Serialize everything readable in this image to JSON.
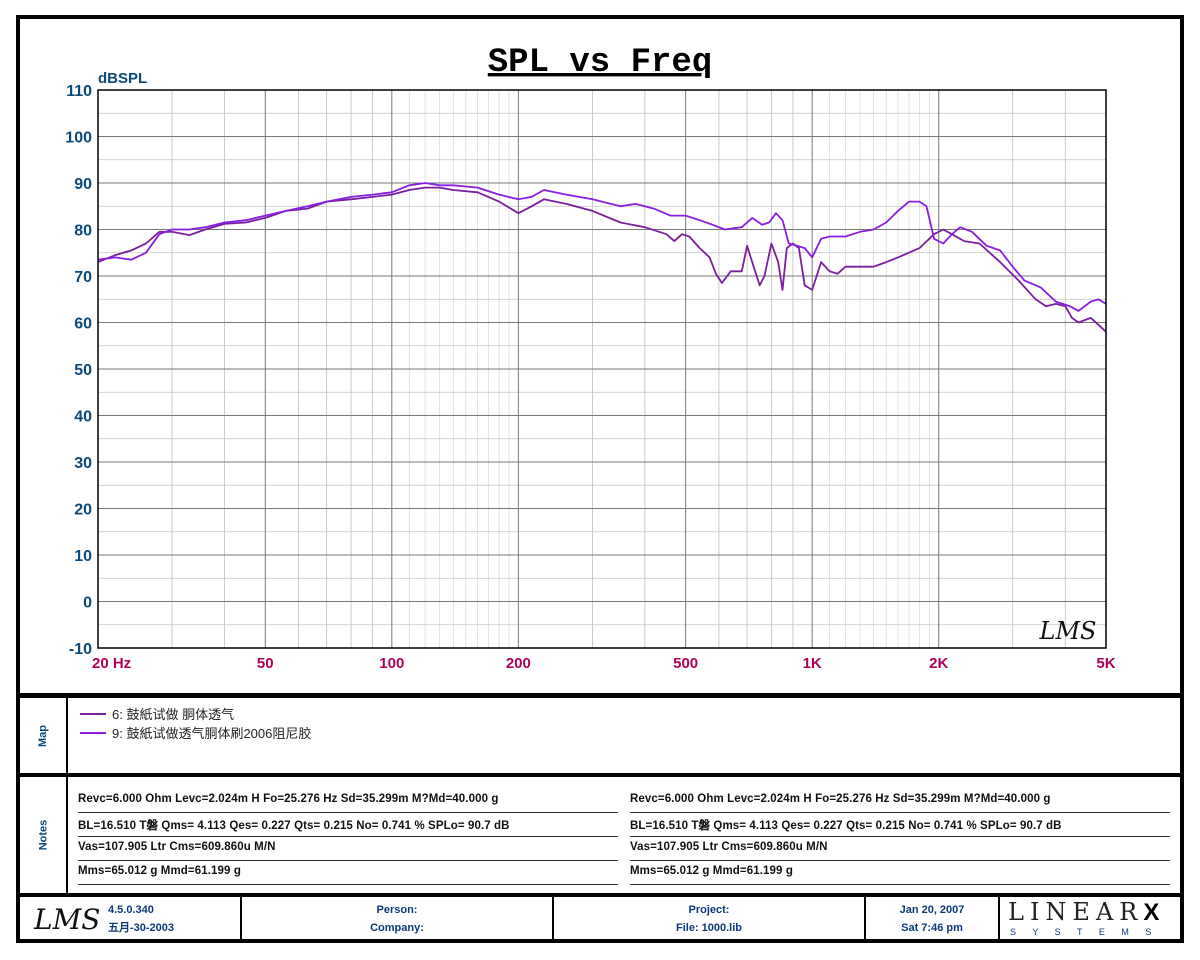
{
  "chart_data": {
    "type": "line",
    "title": "SPL vs Freq",
    "ylabel": "dBSPL",
    "xscale": "log",
    "xlim": [
      20,
      5000
    ],
    "ylim": [
      -10,
      110
    ],
    "grid": true,
    "yticks": [
      110,
      100,
      90,
      80,
      70,
      60,
      50,
      40,
      30,
      20,
      10,
      0,
      -10
    ],
    "xticks": [
      {
        "v": 20,
        "label": "20 Hz"
      },
      {
        "v": 50,
        "label": "50"
      },
      {
        "v": 100,
        "label": "100"
      },
      {
        "v": 200,
        "label": "200"
      },
      {
        "v": 500,
        "label": "500"
      },
      {
        "v": 1000,
        "label": "1K"
      },
      {
        "v": 2000,
        "label": "2K"
      },
      {
        "v": 5000,
        "label": "5K"
      }
    ],
    "watermark": "LMS",
    "series": [
      {
        "name": "6: 鼓紙试做 胴体透气",
        "color": "#7a1fa0",
        "points": [
          [
            20,
            73
          ],
          [
            22,
            74.5
          ],
          [
            24,
            75.5
          ],
          [
            26,
            77
          ],
          [
            28,
            79.5
          ],
          [
            30,
            79.5
          ],
          [
            33,
            78.8
          ],
          [
            36,
            80
          ],
          [
            40,
            81.2
          ],
          [
            45,
            81.5
          ],
          [
            50,
            82.5
          ],
          [
            56,
            84
          ],
          [
            63,
            84.5
          ],
          [
            70,
            86
          ],
          [
            80,
            86.5
          ],
          [
            90,
            87
          ],
          [
            100,
            87.5
          ],
          [
            110,
            88.5
          ],
          [
            120,
            89
          ],
          [
            130,
            89
          ],
          [
            140,
            88.5
          ],
          [
            160,
            88
          ],
          [
            180,
            86
          ],
          [
            200,
            83.5
          ],
          [
            215,
            85
          ],
          [
            230,
            86.5
          ],
          [
            260,
            85.5
          ],
          [
            300,
            84
          ],
          [
            350,
            81.5
          ],
          [
            400,
            80.5
          ],
          [
            450,
            79
          ],
          [
            470,
            77.5
          ],
          [
            490,
            79
          ],
          [
            510,
            78.5
          ],
          [
            540,
            76
          ],
          [
            570,
            74
          ],
          [
            590,
            70.5
          ],
          [
            610,
            68.5
          ],
          [
            640,
            71
          ],
          [
            680,
            71
          ],
          [
            700,
            76.5
          ],
          [
            720,
            73
          ],
          [
            750,
            68
          ],
          [
            770,
            70
          ],
          [
            800,
            77
          ],
          [
            830,
            73
          ],
          [
            850,
            67
          ],
          [
            870,
            76
          ],
          [
            900,
            77
          ],
          [
            930,
            76
          ],
          [
            960,
            68
          ],
          [
            1000,
            67
          ],
          [
            1050,
            73
          ],
          [
            1100,
            71
          ],
          [
            1150,
            70.5
          ],
          [
            1200,
            72
          ],
          [
            1300,
            72
          ],
          [
            1400,
            72
          ],
          [
            1500,
            73
          ],
          [
            1600,
            74
          ],
          [
            1800,
            76
          ],
          [
            1950,
            79
          ],
          [
            2050,
            80
          ],
          [
            2150,
            79
          ],
          [
            2300,
            77.5
          ],
          [
            2500,
            77
          ],
          [
            2800,
            73
          ],
          [
            3100,
            69
          ],
          [
            3400,
            65
          ],
          [
            3600,
            63.5
          ],
          [
            3800,
            64
          ],
          [
            4000,
            63.5
          ],
          [
            4150,
            61
          ],
          [
            4300,
            60
          ],
          [
            4600,
            61
          ],
          [
            4800,
            59.5
          ],
          [
            5000,
            58
          ]
        ]
      },
      {
        "name": "9: 鼓紙试做透气胴体刷2006阻尼胶",
        "color": "#8a1ee0",
        "points": [
          [
            20,
            73.5
          ],
          [
            22,
            74
          ],
          [
            24,
            73.5
          ],
          [
            26,
            75
          ],
          [
            28,
            79
          ],
          [
            30,
            80
          ],
          [
            33,
            80
          ],
          [
            36,
            80.5
          ],
          [
            40,
            81.5
          ],
          [
            45,
            82
          ],
          [
            50,
            83
          ],
          [
            56,
            84
          ],
          [
            63,
            85
          ],
          [
            70,
            86
          ],
          [
            80,
            87
          ],
          [
            90,
            87.5
          ],
          [
            100,
            88
          ],
          [
            110,
            89.5
          ],
          [
            120,
            90
          ],
          [
            130,
            89.5
          ],
          [
            140,
            89.5
          ],
          [
            160,
            89
          ],
          [
            180,
            87.5
          ],
          [
            200,
            86.5
          ],
          [
            215,
            87
          ],
          [
            230,
            88.5
          ],
          [
            260,
            87.5
          ],
          [
            300,
            86.5
          ],
          [
            350,
            85
          ],
          [
            380,
            85.5
          ],
          [
            420,
            84.5
          ],
          [
            460,
            83
          ],
          [
            500,
            83
          ],
          [
            540,
            82
          ],
          [
            580,
            81
          ],
          [
            620,
            80
          ],
          [
            680,
            80.5
          ],
          [
            720,
            82.5
          ],
          [
            760,
            81
          ],
          [
            790,
            81.5
          ],
          [
            820,
            83.5
          ],
          [
            850,
            82
          ],
          [
            880,
            77
          ],
          [
            920,
            76.5
          ],
          [
            960,
            76
          ],
          [
            1000,
            74
          ],
          [
            1050,
            78
          ],
          [
            1100,
            78.5
          ],
          [
            1200,
            78.5
          ],
          [
            1300,
            79.5
          ],
          [
            1400,
            80
          ],
          [
            1500,
            81.5
          ],
          [
            1600,
            84
          ],
          [
            1700,
            86
          ],
          [
            1800,
            86
          ],
          [
            1870,
            85
          ],
          [
            1950,
            78
          ],
          [
            2050,
            77
          ],
          [
            2150,
            79
          ],
          [
            2250,
            80.5
          ],
          [
            2400,
            79.5
          ],
          [
            2600,
            76.5
          ],
          [
            2800,
            75.5
          ],
          [
            3000,
            72
          ],
          [
            3200,
            69
          ],
          [
            3500,
            67.5
          ],
          [
            3800,
            64.5
          ],
          [
            4100,
            63.5
          ],
          [
            4300,
            62.5
          ],
          [
            4600,
            64.5
          ],
          [
            4800,
            65
          ],
          [
            5000,
            64
          ]
        ]
      }
    ]
  },
  "map": {
    "label": "Map",
    "items": [
      {
        "text": "6: 鼓紙试做 胴体透气",
        "color": "#7a1fa0"
      },
      {
        "text": "9: 鼓紙试做透气胴体刷2006阻尼胶",
        "color": "#8a1ee0"
      }
    ]
  },
  "notes": {
    "label": "Notes",
    "left": [
      "Revc=6.000 Ohm  Levc=2.024m H  Fo=25.276 Hz  Sd=35.299m M?Md=40.000 g",
      "BL=16.510 T磐  Qms= 4.113  Qes= 0.227  Qts= 0.215  No= 0.741 %  SPLo= 90.7 dB",
      "Vas=107.905 Ltr  Cms=609.860u M/N",
      "Mms=65.012 g  Mmd=61.199 g"
    ],
    "right": [
      "Revc=6.000 Ohm  Levc=2.024m H  Fo=25.276 Hz  Sd=35.299m M?Md=40.000 g",
      "BL=16.510 T磐  Qms= 4.113  Qes= 0.227  Qts= 0.215  No= 0.741 %  SPLo= 90.7 dB",
      "Vas=107.905 Ltr  Cms=609.860u M/N",
      "Mms=65.012 g  Mmd=61.199 g"
    ]
  },
  "footer": {
    "logo": "LMS",
    "version": "4.5.0.340",
    "build_date": "五月-30-2003",
    "person": "Person:",
    "company": "Company:",
    "project": "Project:",
    "file": "File: 1000.lib",
    "date": "Jan 20, 2007",
    "time": "Sat  7:46 pm",
    "brand": "LINEAR",
    "brand_x": "X",
    "brand_sub": "S Y S T E M S"
  }
}
